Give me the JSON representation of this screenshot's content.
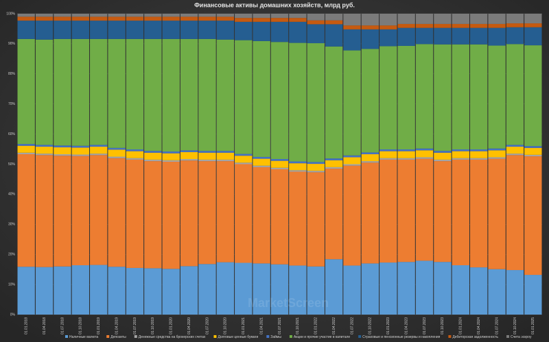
{
  "chart_data": {
    "type": "stacked_bar_100",
    "title": "Финансовые активы домашних хозяйств, млрд руб.",
    "watermark": "MarketScreen",
    "categories": [
      "01.01.2018",
      "01.04.2018",
      "01.07.2018",
      "01.10.2018",
      "01.01.2019",
      "01.04.2019",
      "01.07.2019",
      "01.10.2019",
      "01.01.2020",
      "01.04.2020",
      "01.07.2020",
      "01.10.2020",
      "01.01.2021",
      "01.04.2021",
      "01.07.2021",
      "01.10.2021",
      "01.01.2022",
      "01.04.2022",
      "01.07.2022",
      "01.10.2022",
      "01.01.2023",
      "01.04.2023",
      "01.07.2023",
      "01.10.2023",
      "01.01.2024",
      "01.04.2024",
      "01.07.2024",
      "01.10.2024",
      "01.01.2025"
    ],
    "series": [
      {
        "name": "Наличные валюта",
        "color": "#5b9bd5",
        "values": [
          15.9,
          15.8,
          16.0,
          16.4,
          16.5,
          15.9,
          15.5,
          15.4,
          15.2,
          16.1,
          16.8,
          17.4,
          17.2,
          17.0,
          16.7,
          16.3,
          16.0,
          18.4,
          16.3,
          17.0,
          17.3,
          17.5,
          17.9,
          17.5,
          16.4,
          15.7,
          15.1,
          14.8,
          13.2
        ]
      },
      {
        "name": "Депозиты",
        "color": "#ed7d31",
        "values": [
          37.4,
          37.2,
          36.8,
          36.3,
          36.5,
          36.1,
          36.0,
          35.6,
          35.6,
          35.1,
          34.2,
          33.6,
          32.8,
          32.0,
          31.6,
          31.2,
          31.3,
          30.1,
          33.2,
          33.5,
          34.2,
          34.0,
          33.9,
          33.5,
          35.1,
          35.8,
          36.7,
          38.2,
          39.4
        ]
      },
      {
        "name": "Денежные средства на брокерских счетах",
        "color": "#a5a5a5",
        "values": [
          0.5,
          0.5,
          0.5,
          0.5,
          0.5,
          0.5,
          0.5,
          0.5,
          0.5,
          0.5,
          0.5,
          0.5,
          0.5,
          0.5,
          0.5,
          0.5,
          0.5,
          0.5,
          0.5,
          0.5,
          0.5,
          0.5,
          0.5,
          0.5,
          0.5,
          0.5,
          0.5,
          0.5,
          0.5
        ]
      },
      {
        "name": "Долговые ценные бумаги",
        "color": "#ffc000",
        "values": [
          2.3,
          2.3,
          2.3,
          2.3,
          2.3,
          2.3,
          2.3,
          2.3,
          2.3,
          2.3,
          2.3,
          2.3,
          2.3,
          2.3,
          2.3,
          2.3,
          2.3,
          2.3,
          2.3,
          2.3,
          2.3,
          2.3,
          2.3,
          2.3,
          2.3,
          2.3,
          2.3,
          2.3,
          2.3
        ]
      },
      {
        "name": "Займы",
        "color": "#4472c4",
        "values": [
          0.6,
          0.6,
          0.6,
          0.6,
          0.6,
          0.6,
          0.6,
          0.6,
          0.6,
          0.6,
          0.6,
          0.6,
          0.6,
          0.6,
          0.6,
          0.6,
          0.6,
          0.6,
          0.6,
          0.6,
          0.6,
          0.6,
          0.6,
          0.6,
          0.6,
          0.6,
          0.6,
          0.6,
          0.6
        ]
      },
      {
        "name": "Акции и прочие участие в капитале",
        "color": "#70ad47",
        "values": [
          34.9,
          35.0,
          35.4,
          35.5,
          35.2,
          36.2,
          36.7,
          37.2,
          37.4,
          37.0,
          37.2,
          37.0,
          37.8,
          38.5,
          38.9,
          39.4,
          39.5,
          37.2,
          34.9,
          34.4,
          34.3,
          34.4,
          34.7,
          35.4,
          34.9,
          34.9,
          34.2,
          33.5,
          33.5
        ]
      },
      {
        "name": "Страховые и пенсионные резервы и накопления",
        "color": "#255e91",
        "values": [
          6.1,
          6.3,
          6.1,
          6.1,
          6.1,
          6.1,
          6.1,
          6.1,
          6.1,
          6.1,
          6.1,
          6.3,
          6.1,
          6.4,
          6.7,
          7.0,
          6.3,
          7.4,
          7.0,
          6.5,
          5.6,
          6.0,
          5.4,
          5.5,
          5.5,
          5.5,
          5.9,
          5.6,
          6.0
        ]
      },
      {
        "name": "Дебиторская задолженность",
        "color": "#c55a11",
        "values": [
          1.3,
          1.3,
          1.3,
          1.3,
          1.3,
          1.3,
          1.3,
          1.3,
          1.3,
          1.3,
          1.3,
          1.3,
          1.3,
          1.3,
          1.3,
          1.3,
          1.3,
          1.3,
          1.3,
          1.3,
          1.3,
          1.3,
          1.3,
          1.3,
          1.3,
          1.3,
          1.3,
          1.3,
          1.3
        ]
      },
      {
        "name": "Счета эскроу",
        "color": "#7b7b7b",
        "values": [
          1.0,
          1.0,
          1.0,
          1.0,
          1.0,
          1.0,
          1.0,
          1.0,
          1.0,
          1.0,
          1.0,
          1.0,
          1.4,
          1.4,
          1.4,
          1.4,
          2.2,
          2.2,
          3.9,
          3.9,
          3.9,
          3.4,
          3.4,
          3.4,
          3.4,
          3.4,
          3.4,
          3.2,
          3.2
        ]
      }
    ],
    "ylim": [
      0,
      100
    ],
    "yticks": [
      {
        "value": 0,
        "label": "0%"
      },
      {
        "value": 10,
        "label": "10%"
      },
      {
        "value": 20,
        "label": "20%"
      },
      {
        "value": 30,
        "label": "30%"
      },
      {
        "value": 40,
        "label": "40%"
      },
      {
        "value": 50,
        "label": "50%"
      },
      {
        "value": 60,
        "label": "60%"
      },
      {
        "value": 70,
        "label": "70%"
      },
      {
        "value": 80,
        "label": "80%"
      },
      {
        "value": 90,
        "label": "90%"
      },
      {
        "value": 100,
        "label": "100%"
      }
    ],
    "grid": true,
    "legend": "bottom"
  }
}
